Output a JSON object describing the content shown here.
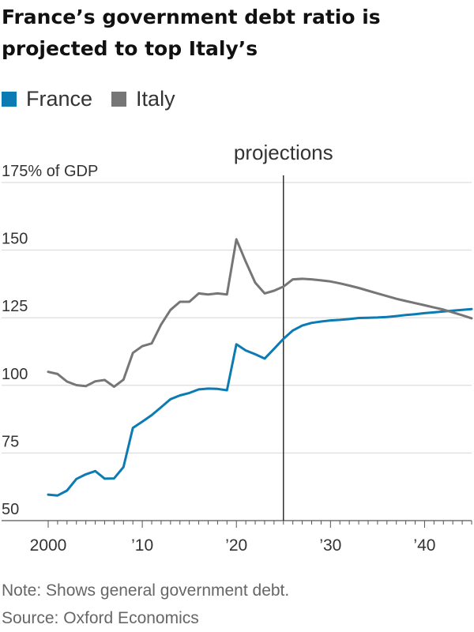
{
  "title": "France’s government debt ratio is projected to top Italy’s",
  "colors": {
    "france": "#0c7bb3",
    "italy": "#767676"
  },
  "legend": [
    {
      "key": "france",
      "label": "France"
    },
    {
      "key": "italy",
      "label": "Italy"
    }
  ],
  "notes": {
    "note": "Note: Shows general government debt.",
    "source": "Source: Oxford Economics"
  },
  "chart_data": {
    "type": "line",
    "title": "France’s government debt ratio is projected to top Italy’s",
    "ylabel": "% of GDP",
    "ylim": [
      50,
      175
    ],
    "xlim": [
      2000,
      2045
    ],
    "grid": true,
    "y_ticks": [
      {
        "value": 175,
        "label": "175% of GDP"
      },
      {
        "value": 150,
        "label": "150"
      },
      {
        "value": 125,
        "label": "125"
      },
      {
        "value": 100,
        "label": "100"
      },
      {
        "value": 75,
        "label": "75"
      },
      {
        "value": 50,
        "label": "50"
      }
    ],
    "x_ticks": [
      {
        "value": 2000,
        "label": "2000"
      },
      {
        "value": 2010,
        "label": "’10"
      },
      {
        "value": 2020,
        "label": "’20"
      },
      {
        "value": 2030,
        "label": "’30"
      },
      {
        "value": 2040,
        "label": "’40"
      }
    ],
    "projection_start": 2025,
    "annotations": [
      {
        "x": 2025,
        "label": "projections"
      }
    ],
    "series": [
      {
        "name": "France",
        "key": "france",
        "points": [
          [
            2000,
            59.6
          ],
          [
            2001,
            59.3
          ],
          [
            2002,
            61.1
          ],
          [
            2003,
            65.4
          ],
          [
            2004,
            67.1
          ],
          [
            2005,
            68.3
          ],
          [
            2006,
            65.5
          ],
          [
            2007,
            65.6
          ],
          [
            2008,
            69.8
          ],
          [
            2009,
            84.3
          ],
          [
            2010,
            86.6
          ],
          [
            2011,
            89.0
          ],
          [
            2012,
            91.9
          ],
          [
            2013,
            94.9
          ],
          [
            2014,
            96.3
          ],
          [
            2015,
            97.2
          ],
          [
            2016,
            98.5
          ],
          [
            2017,
            98.8
          ],
          [
            2018,
            98.7
          ],
          [
            2019,
            98.2
          ],
          [
            2020,
            115.2
          ],
          [
            2021,
            112.9
          ],
          [
            2022,
            111.5
          ],
          [
            2023,
            109.9
          ],
          [
            2024,
            113.5
          ],
          [
            2025,
            117.2
          ],
          [
            2026,
            120.3
          ],
          [
            2027,
            122.1
          ],
          [
            2028,
            123.1
          ],
          [
            2029,
            123.6
          ],
          [
            2030,
            124.0
          ],
          [
            2031,
            124.2
          ],
          [
            2032,
            124.5
          ],
          [
            2033,
            124.9
          ],
          [
            2034,
            125.0
          ],
          [
            2035,
            125.1
          ],
          [
            2036,
            125.3
          ],
          [
            2037,
            125.6
          ],
          [
            2038,
            126.0
          ],
          [
            2039,
            126.3
          ],
          [
            2040,
            126.7
          ],
          [
            2041,
            127.0
          ],
          [
            2042,
            127.3
          ],
          [
            2043,
            127.6
          ],
          [
            2044,
            127.9
          ],
          [
            2045,
            128.2
          ]
        ]
      },
      {
        "name": "Italy",
        "key": "italy",
        "points": [
          [
            2000,
            105.0
          ],
          [
            2001,
            104.2
          ],
          [
            2002,
            101.4
          ],
          [
            2003,
            100.1
          ],
          [
            2004,
            99.7
          ],
          [
            2005,
            101.5
          ],
          [
            2006,
            102.0
          ],
          [
            2007,
            99.5
          ],
          [
            2008,
            102.1
          ],
          [
            2009,
            112.0
          ],
          [
            2010,
            114.5
          ],
          [
            2011,
            115.5
          ],
          [
            2012,
            122.5
          ],
          [
            2013,
            127.9
          ],
          [
            2014,
            130.9
          ],
          [
            2015,
            130.9
          ],
          [
            2016,
            134.0
          ],
          [
            2017,
            133.6
          ],
          [
            2018,
            134.0
          ],
          [
            2019,
            133.6
          ],
          [
            2020,
            154.0
          ],
          [
            2021,
            145.7
          ],
          [
            2022,
            138.0
          ],
          [
            2023,
            134.0
          ],
          [
            2024,
            135.0
          ],
          [
            2025,
            136.5
          ],
          [
            2026,
            139.2
          ],
          [
            2027,
            139.4
          ],
          [
            2028,
            139.2
          ],
          [
            2029,
            138.8
          ],
          [
            2030,
            138.4
          ],
          [
            2031,
            137.7
          ],
          [
            2032,
            136.9
          ],
          [
            2033,
            136.0
          ],
          [
            2034,
            135.0
          ],
          [
            2035,
            134.0
          ],
          [
            2036,
            133.0
          ],
          [
            2037,
            132.0
          ],
          [
            2038,
            131.2
          ],
          [
            2039,
            130.4
          ],
          [
            2040,
            129.6
          ],
          [
            2041,
            128.8
          ],
          [
            2042,
            128.0
          ],
          [
            2043,
            127.0
          ],
          [
            2044,
            125.9
          ],
          [
            2045,
            124.8
          ]
        ]
      }
    ]
  }
}
